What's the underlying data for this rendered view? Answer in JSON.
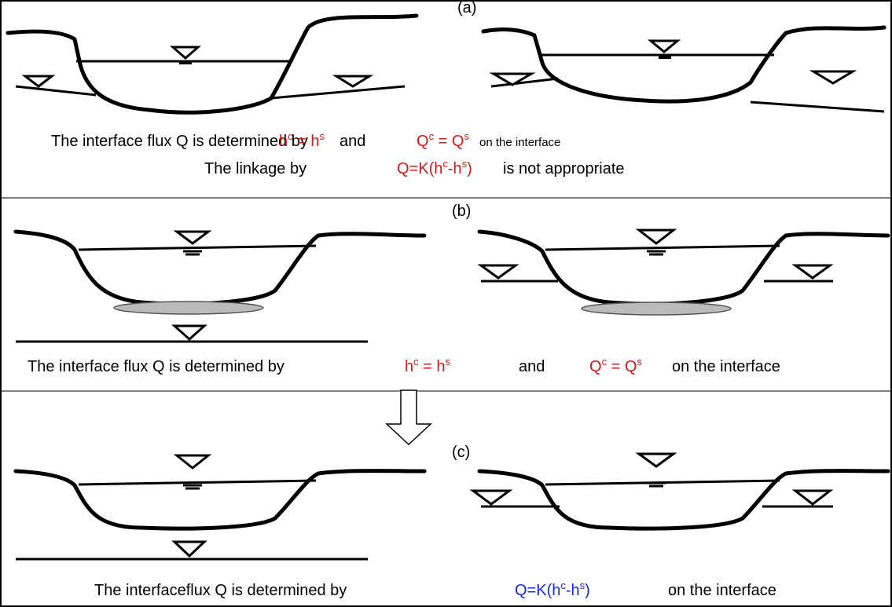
{
  "panels": [
    {
      "label": "(a)",
      "lines": [
        [
          "The interface flux Q is determined by",
          [
            "h",
            "c",
            " = h",
            "s"
          ],
          "and",
          [
            "Q",
            "c",
            " = Q",
            "s"
          ],
          "on the interface"
        ],
        [
          "The linkage by",
          [
            "Q=K(h",
            "c",
            "-h",
            "s",
            ")"
          ],
          "is not appropriate"
        ]
      ]
    },
    {
      "label": "(b)",
      "lines": [
        [
          "The interface flux Q is determined by",
          [
            "h",
            "c",
            " = h",
            "s"
          ],
          "and",
          [
            "Q",
            "c",
            " = Q",
            "s"
          ],
          "on the interface"
        ]
      ]
    },
    {
      "label": "(c)",
      "lines": [
        [
          "The interfaceflux Q is determined by",
          [
            "Q=K(h",
            "c",
            "-h",
            "s",
            ")"
          ],
          "on the interface"
        ]
      ]
    }
  ]
}
